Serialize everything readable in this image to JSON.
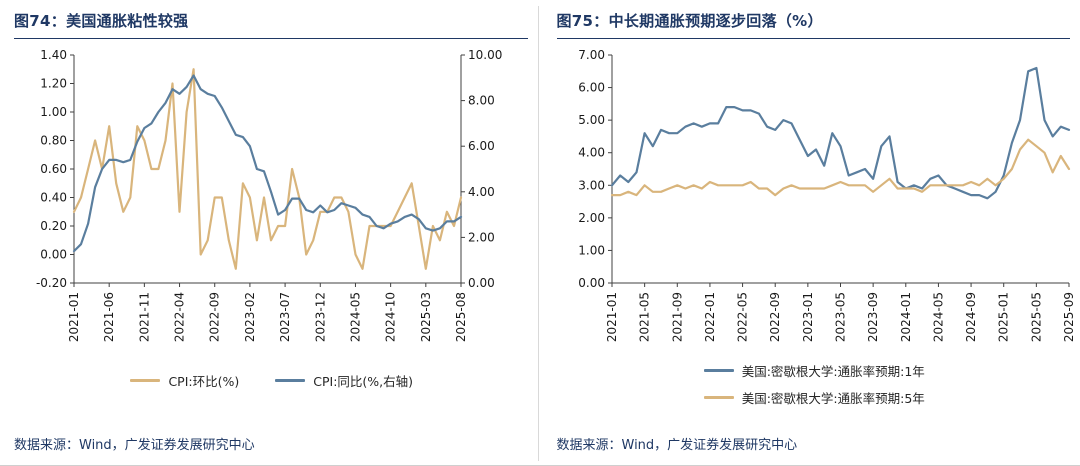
{
  "colors": {
    "navy": "#1f3864",
    "tan": "#d9b57c",
    "blue": "#5a7e9e",
    "axis": "#404040",
    "divider": "#d9d9d9"
  },
  "panels": [
    {
      "title": "图74：美国通胀粘性较强",
      "source": "数据来源：Wind，广发证券发展研究中心"
    },
    {
      "title": "图75：中长期通胀预期逐步回落（%）",
      "source": "数据来源：Wind，广发证券发展研究中心"
    }
  ],
  "chart_data": [
    {
      "type": "line",
      "title": "图74：美国通胀粘性较强",
      "x_frequency": "monthly",
      "x_start": "2021-01",
      "x_end": "2025-08",
      "xticks": [
        "2021-01",
        "2021-06",
        "2021-11",
        "2022-04",
        "2022-09",
        "2023-02",
        "2023-07",
        "2023-12",
        "2024-05",
        "2024-10",
        "2025-03",
        "2025-08"
      ],
      "xtick_step": 5,
      "grid": false,
      "legend_position": "bottom",
      "left_axis": {
        "min": -0.2,
        "max": 1.4,
        "ticks": [
          "-0.20",
          "0.00",
          "0.20",
          "0.40",
          "0.60",
          "0.80",
          "1.00",
          "1.20",
          "1.40"
        ]
      },
      "right_axis": {
        "min": 0,
        "max": 10,
        "ticks": [
          "0.00",
          "2.00",
          "4.00",
          "6.00",
          "8.00",
          "10.00"
        ]
      },
      "series": [
        {
          "name": "CPI:环比(%)",
          "axis": "left",
          "color": "#d9b57c",
          "values": [
            0.3,
            0.4,
            0.6,
            0.8,
            0.6,
            0.9,
            0.5,
            0.3,
            0.4,
            0.9,
            0.8,
            0.6,
            0.6,
            0.8,
            1.2,
            0.3,
            1.0,
            1.3,
            0.0,
            0.1,
            0.4,
            0.4,
            0.1,
            -0.1,
            0.5,
            0.4,
            0.1,
            0.4,
            0.1,
            0.2,
            0.2,
            0.6,
            0.4,
            0.0,
            0.1,
            0.3,
            0.3,
            0.4,
            0.4,
            0.3,
            0.0,
            -0.1,
            0.2,
            0.2,
            0.2,
            0.2,
            0.3,
            0.4,
            0.5,
            0.2,
            -0.1,
            0.2,
            0.1,
            0.3,
            0.2,
            0.4
          ]
        },
        {
          "name": "CPI:同比(%,右轴)",
          "axis": "right",
          "color": "#5a7e9e",
          "values": [
            1.4,
            1.7,
            2.6,
            4.2,
            5.0,
            5.4,
            5.4,
            5.3,
            5.4,
            6.2,
            6.8,
            7.0,
            7.5,
            7.9,
            8.5,
            8.3,
            8.6,
            9.1,
            8.5,
            8.3,
            8.2,
            7.7,
            7.1,
            6.5,
            6.4,
            6.0,
            5.0,
            4.9,
            4.0,
            3.0,
            3.2,
            3.7,
            3.7,
            3.2,
            3.1,
            3.4,
            3.1,
            3.2,
            3.5,
            3.4,
            3.3,
            3.0,
            2.9,
            2.5,
            2.4,
            2.6,
            2.7,
            2.9,
            3.0,
            2.8,
            2.4,
            2.3,
            2.4,
            2.7,
            2.7,
            2.9
          ]
        }
      ]
    },
    {
      "type": "line",
      "title": "图75：中长期通胀预期逐步回落（%）",
      "x_frequency": "monthly",
      "x_start": "2021-01",
      "x_end": "2025-09",
      "xticks": [
        "2021-01",
        "2021-05",
        "2021-09",
        "2022-01",
        "2022-05",
        "2022-09",
        "2023-01",
        "2023-05",
        "2023-09",
        "2024-01",
        "2024-05",
        "2024-09",
        "2025-01",
        "2025-05",
        "2025-09"
      ],
      "xtick_step": 4,
      "grid": false,
      "legend_position": "bottom",
      "left_axis": {
        "min": 0,
        "max": 7,
        "ticks": [
          "0.00",
          "1.00",
          "2.00",
          "3.00",
          "4.00",
          "5.00",
          "6.00",
          "7.00"
        ]
      },
      "series": [
        {
          "name": "美国:密歇根大学:通胀率预期:1年",
          "axis": "left",
          "color": "#5a7e9e",
          "values": [
            3.0,
            3.3,
            3.1,
            3.4,
            4.6,
            4.2,
            4.7,
            4.6,
            4.6,
            4.8,
            4.9,
            4.8,
            4.9,
            4.9,
            5.4,
            5.4,
            5.3,
            5.3,
            5.2,
            4.8,
            4.7,
            5.0,
            4.9,
            4.4,
            3.9,
            4.1,
            3.6,
            4.6,
            4.2,
            3.3,
            3.4,
            3.5,
            3.2,
            4.2,
            4.5,
            3.1,
            2.9,
            3.0,
            2.9,
            3.2,
            3.3,
            3.0,
            2.9,
            2.8,
            2.7,
            2.7,
            2.6,
            2.8,
            3.3,
            4.3,
            5.0,
            6.5,
            6.6,
            5.0,
            4.5,
            4.8,
            4.7
          ]
        },
        {
          "name": "美国:密歇根大学:通胀率预期:5年",
          "axis": "left",
          "color": "#d9b57c",
          "values": [
            2.7,
            2.7,
            2.8,
            2.7,
            3.0,
            2.8,
            2.8,
            2.9,
            3.0,
            2.9,
            3.0,
            2.9,
            3.1,
            3.0,
            3.0,
            3.0,
            3.0,
            3.1,
            2.9,
            2.9,
            2.7,
            2.9,
            3.0,
            2.9,
            2.9,
            2.9,
            2.9,
            3.0,
            3.1,
            3.0,
            3.0,
            3.0,
            2.8,
            3.0,
            3.2,
            2.9,
            2.9,
            2.9,
            2.8,
            3.0,
            3.0,
            3.0,
            3.0,
            3.0,
            3.1,
            3.0,
            3.2,
            3.0,
            3.2,
            3.5,
            4.1,
            4.4,
            4.2,
            4.0,
            3.4,
            3.9,
            3.5
          ]
        }
      ]
    }
  ]
}
